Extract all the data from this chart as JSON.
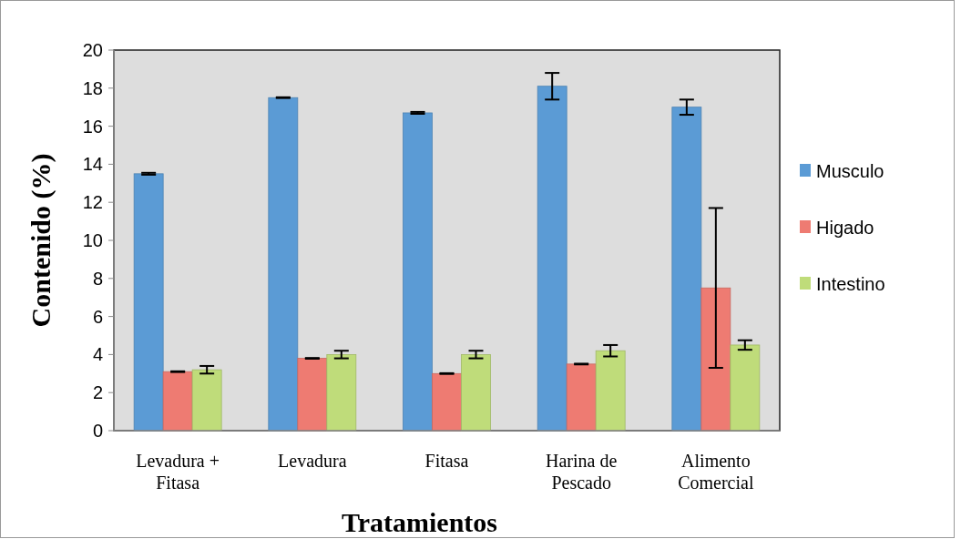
{
  "chart_data": {
    "type": "bar",
    "xlabel": "Tratamientos",
    "ylabel": "Contenido (%)",
    "categories": [
      "Levadura +\nFitasa",
      "Levadura",
      "Fitasa",
      "Harina de\nPescado",
      "Alimento\nComercial"
    ],
    "series": [
      {
        "name": "Musculo",
        "color": "#5b9bd5",
        "values": [
          13.5,
          17.5,
          16.7,
          18.1,
          17.0
        ],
        "errors": [
          0.05,
          0.02,
          0.05,
          0.7,
          0.4
        ]
      },
      {
        "name": "Higado",
        "color": "#ee7b72",
        "values": [
          3.1,
          3.8,
          3.0,
          3.5,
          7.5
        ],
        "errors": [
          0.02,
          0.02,
          0.02,
          0.02,
          4.2
        ]
      },
      {
        "name": "Intestino",
        "color": "#bfdc7a",
        "values": [
          3.2,
          4.0,
          4.0,
          4.2,
          4.5
        ],
        "errors": [
          0.2,
          0.2,
          0.2,
          0.3,
          0.25
        ]
      }
    ],
    "ylim": [
      0,
      20
    ],
    "yticks": [
      0,
      2,
      4,
      6,
      8,
      10,
      12,
      14,
      16,
      18,
      20
    ],
    "legend": "right",
    "grid": false
  }
}
